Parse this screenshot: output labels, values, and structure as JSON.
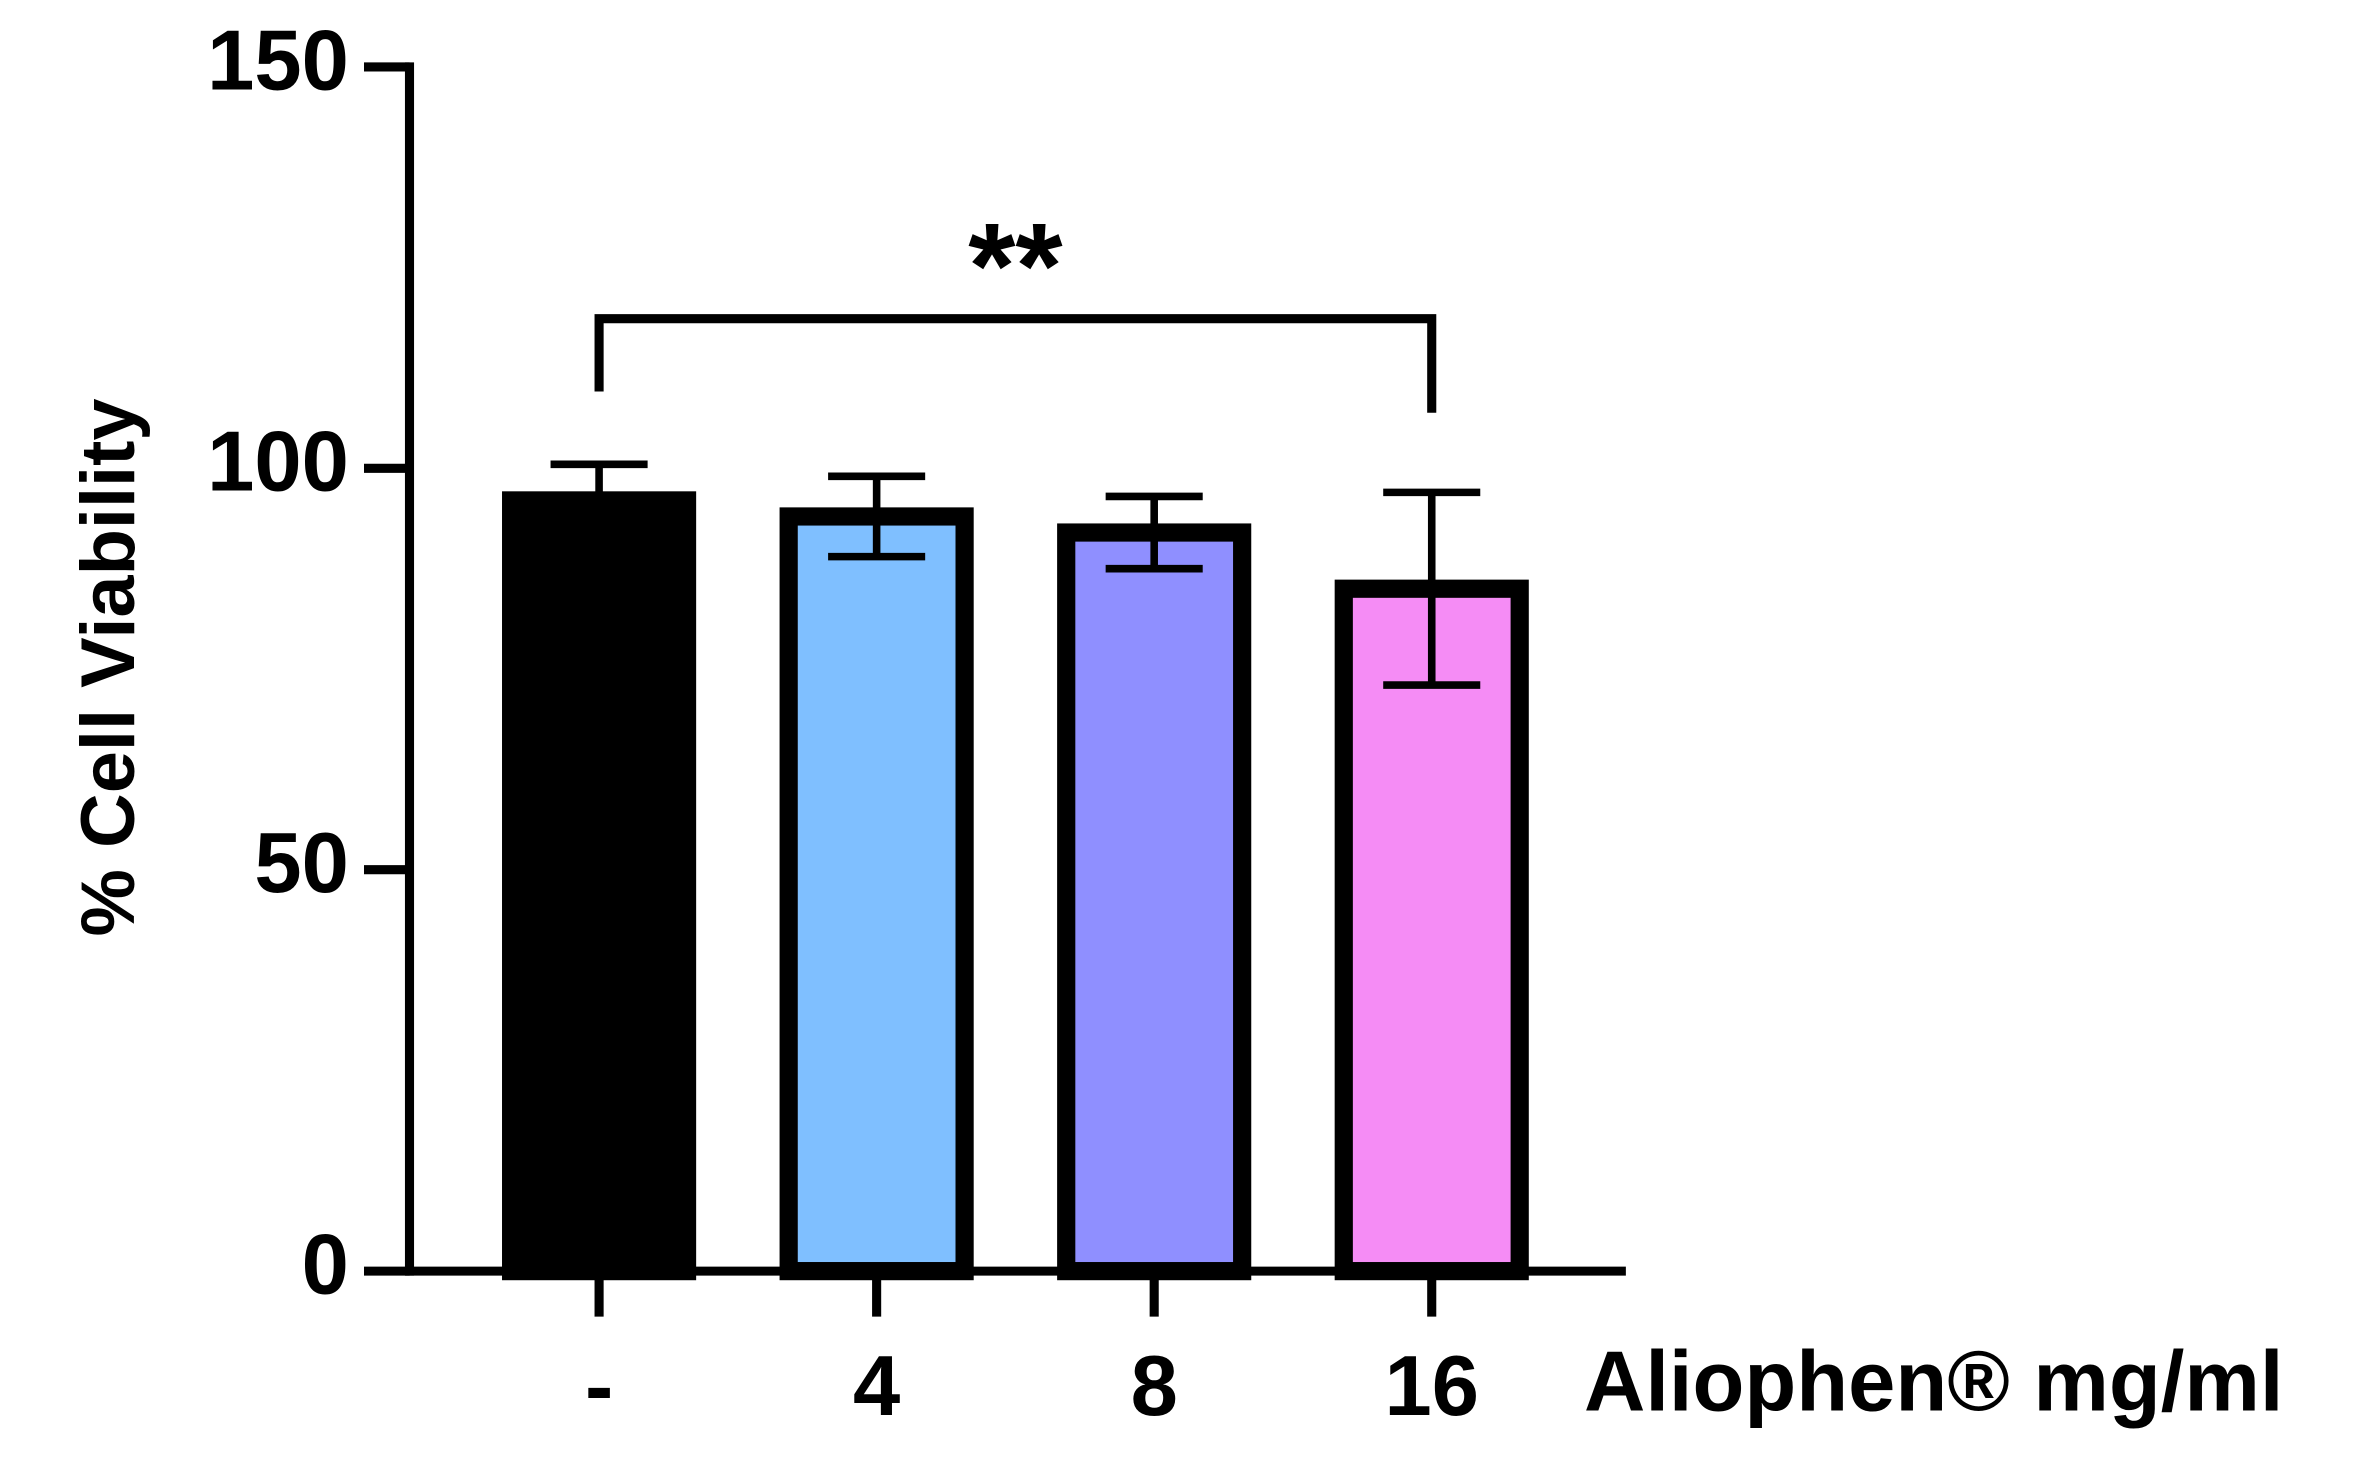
{
  "chart_data": {
    "type": "bar",
    "y_label": "% Cell Viability",
    "x_label": "Aliophen® mg/ml",
    "categories": [
      "-",
      "4",
      "8",
      "16"
    ],
    "values": [
      96,
      94,
      92,
      85
    ],
    "errors": [
      4.5,
      5,
      4.5,
      12
    ],
    "colors": [
      "#000000",
      "#7fbfff",
      "#8f8fff",
      "#f58cf5"
    ],
    "ylim": [
      0,
      150
    ],
    "yticks": [
      0,
      50,
      100,
      150
    ],
    "annotation": "**"
  }
}
